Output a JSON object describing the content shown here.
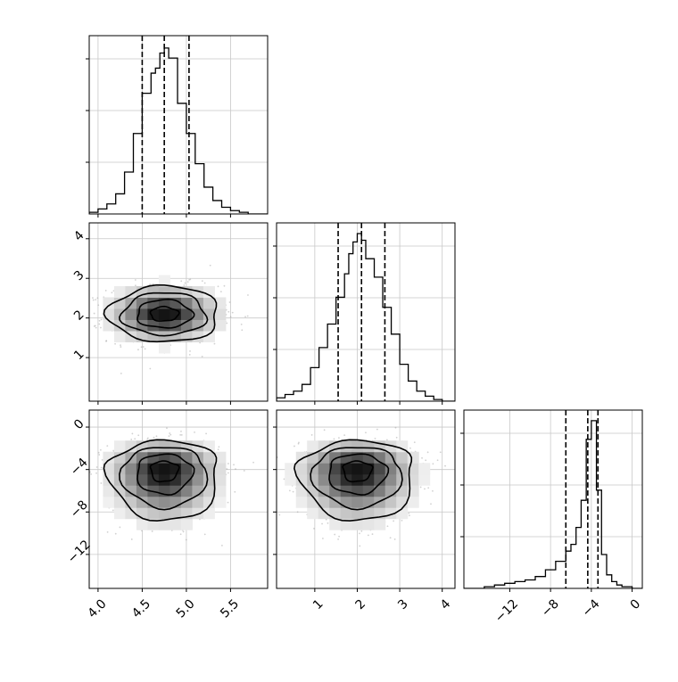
{
  "chart_data": [
    {
      "type": "histogram",
      "panel": "diag-0",
      "param_index": 0,
      "xlim": [
        3.9,
        5.92
      ],
      "xticks": [
        "4.0",
        "4.5",
        "5.0",
        "5.5"
      ],
      "show_xticklabels": false,
      "bins_x": [
        3.9,
        4.0,
        4.1,
        4.2,
        4.3,
        4.4,
        4.5,
        4.6,
        4.65,
        4.7,
        4.75,
        4.8,
        4.9,
        5.0,
        5.1,
        5.2,
        5.3,
        5.4,
        5.5,
        5.6,
        5.7,
        5.8,
        5.92
      ],
      "counts": [
        0.01,
        0.03,
        0.06,
        0.12,
        0.25,
        0.48,
        0.72,
        0.84,
        0.87,
        0.96,
        0.99,
        0.93,
        0.66,
        0.48,
        0.3,
        0.16,
        0.08,
        0.04,
        0.02,
        0.01,
        0.0,
        0.0
      ],
      "quantiles": [
        4.5,
        4.75,
        5.03
      ],
      "grid": true
    },
    {
      "type": "histogram",
      "panel": "diag-1",
      "param_index": 1,
      "xlim": [
        0.1,
        4.3
      ],
      "xticks": [
        "1",
        "2",
        "3",
        "4"
      ],
      "show_xticklabels": false,
      "bins_x": [
        0.1,
        0.3,
        0.5,
        0.7,
        0.9,
        1.1,
        1.3,
        1.5,
        1.7,
        1.8,
        1.9,
        2.0,
        2.1,
        2.2,
        2.4,
        2.6,
        2.8,
        3.0,
        3.2,
        3.4,
        3.6,
        3.8,
        4.0,
        4.3
      ],
      "counts": [
        0.02,
        0.04,
        0.06,
        0.1,
        0.2,
        0.32,
        0.46,
        0.62,
        0.76,
        0.88,
        0.95,
        1.0,
        0.96,
        0.85,
        0.74,
        0.56,
        0.4,
        0.22,
        0.12,
        0.06,
        0.03,
        0.01,
        0.0
      ],
      "quantiles": [
        1.55,
        2.1,
        2.65
      ],
      "grid": true
    },
    {
      "type": "histogram",
      "panel": "diag-2",
      "param_index": 2,
      "xlim": [
        -16.5,
        1.0
      ],
      "xticks": [
        "−12",
        "−8",
        "−4",
        "0"
      ],
      "show_xticklabels": true,
      "bins_x": [
        -16.5,
        -15.5,
        -14.5,
        -13.5,
        -12.5,
        -11.5,
        -10.5,
        -9.5,
        -8.5,
        -7.5,
        -6.5,
        -6.0,
        -5.5,
        -5.0,
        -4.5,
        -4.0,
        -3.5,
        -3.0,
        -2.5,
        -2.0,
        -1.5,
        -1.0,
        0.0,
        1.0
      ],
      "counts": [
        0.0,
        0.0,
        0.01,
        0.02,
        0.03,
        0.04,
        0.05,
        0.07,
        0.11,
        0.16,
        0.22,
        0.26,
        0.36,
        0.52,
        0.88,
        0.99,
        0.58,
        0.2,
        0.08,
        0.04,
        0.02,
        0.01,
        0.0
      ],
      "quantiles": [
        -6.5,
        -4.35,
        -3.35
      ],
      "grid": true
    },
    {
      "type": "2d-density-contour",
      "panel": "pair-1-0",
      "x_param": 0,
      "y_param": 1,
      "xlim": [
        3.9,
        5.92
      ],
      "ylim": [
        -0.1,
        4.4
      ],
      "xticks": [
        "4.0",
        "4.5",
        "5.0",
        "5.5"
      ],
      "yticks": [
        "1",
        "2",
        "3",
        "4"
      ],
      "show_xticklabels": false,
      "show_yticklabels": true,
      "center": [
        4.75,
        2.1
      ],
      "spread": [
        0.3,
        0.65
      ],
      "contour_levels": [
        0.12,
        0.39,
        0.68,
        0.86
      ],
      "grid": true
    },
    {
      "type": "2d-density-contour",
      "panel": "pair-2-0",
      "x_param": 0,
      "y_param": 2,
      "xlim": [
        3.9,
        5.92
      ],
      "ylim": [
        -15.2,
        1.6
      ],
      "xticks": [
        "4.0",
        "4.5",
        "5.0",
        "5.5"
      ],
      "yticks": [
        "−12",
        "−8",
        "−4",
        "0"
      ],
      "show_xticklabels": true,
      "show_yticklabels": true,
      "center": [
        4.75,
        -3.9
      ],
      "spread": [
        0.3,
        2.4
      ],
      "skew": "lower tail",
      "contour_levels": [
        0.12,
        0.39,
        0.68,
        0.86
      ],
      "grid": true
    },
    {
      "type": "2d-density-contour",
      "panel": "pair-2-1",
      "x_param": 1,
      "y_param": 2,
      "xlim": [
        0.1,
        4.3
      ],
      "ylim": [
        -15.2,
        1.6
      ],
      "xticks": [
        "1",
        "2",
        "3",
        "4"
      ],
      "yticks": [
        "−12",
        "−8",
        "−4",
        "0"
      ],
      "show_xticklabels": true,
      "show_yticklabels": false,
      "center": [
        2.0,
        -3.9
      ],
      "spread": [
        0.65,
        2.4
      ],
      "skew": "lower tail",
      "contour_levels": [
        0.12,
        0.39,
        0.68,
        0.86
      ],
      "grid": true
    }
  ],
  "colors": {
    "line": "#000000",
    "grid": "#c8c8c8",
    "point": "#9a9a9a",
    "frame": "#000000"
  }
}
